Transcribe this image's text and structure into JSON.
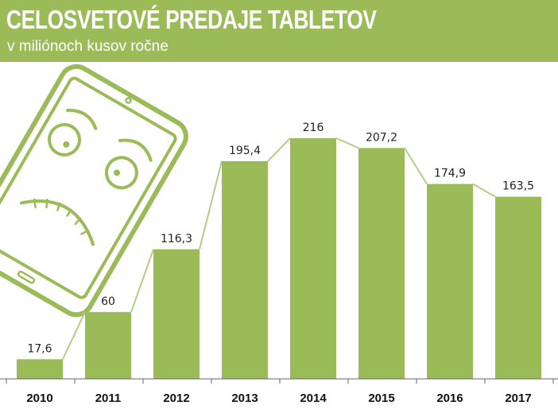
{
  "header": {
    "title": "CELOSVETOVÉ PREDAJE TABLETOV",
    "subtitle": "v miliónoch kusov ročne"
  },
  "colors": {
    "accent": "#9bbb59",
    "bar": "#9bbb59",
    "connector": "#b5cc88",
    "text": "#222222"
  },
  "illustration": {
    "icon": "sad-tablet-icon"
  },
  "chart_data": {
    "type": "bar",
    "title": "CELOSVETOVÉ PREDAJE TABLETOV",
    "subtitle": "v miliónoch kusov ročne",
    "categories": [
      "2010",
      "2011",
      "2012",
      "2013",
      "2014",
      "2015",
      "2016",
      "2017"
    ],
    "values": [
      17.6,
      60,
      116.3,
      195.4,
      216,
      207.2,
      174.9,
      163.5
    ],
    "value_labels": [
      "17,6",
      "60",
      "116,3",
      "195,4",
      "216",
      "207,2",
      "174,9",
      "163,5"
    ],
    "ylim": [
      0,
      216
    ],
    "grid": false,
    "legend": "none",
    "xlabel": "",
    "ylabel": ""
  }
}
